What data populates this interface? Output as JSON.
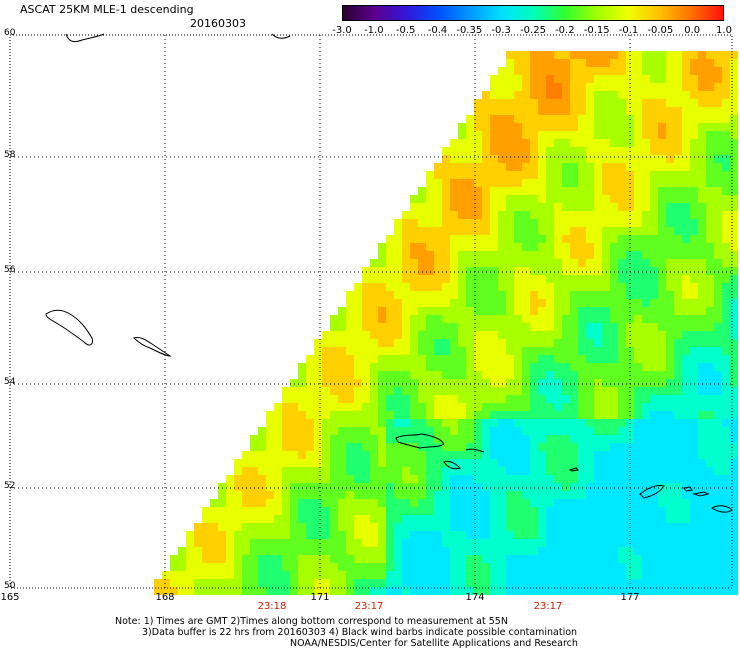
{
  "title": "ASCAT 25KM MLE-1 descending",
  "date": "20160303",
  "colorbar": {
    "labels": [
      "-3.0",
      "-1.0",
      "-0.5",
      "-0.4",
      "-0.35",
      "-0.3",
      "-0.25",
      "-0.2",
      "-0.15",
      "-0.1",
      "-0.05",
      "0.0",
      "1.0"
    ],
    "colors": [
      "#2a0030",
      "#5a0090",
      "#3018d8",
      "#0050ff",
      "#0098ff",
      "#00e0ff",
      "#00ffb8",
      "#30ff30",
      "#a0ff00",
      "#f0ff00",
      "#ffc000",
      "#ff7000",
      "#ff1010"
    ]
  },
  "lat_labels": [
    "60",
    "58",
    "56",
    "54",
    "52",
    "50"
  ],
  "lon_labels": [
    "165",
    "168",
    "171",
    "174",
    "177"
  ],
  "time_labels": [
    "23:18",
    "23:17",
    "23:17"
  ],
  "notes": [
    "Note: 1) Times are GMT 2)Times along bottom correspond to measurement at 55N",
    "3)Data buffer is 22 hrs from 20160303 4) Black wind barbs indicate possible contamination",
    "NOAA/NESDIS/Center for Satellite Applications and Research"
  ]
}
